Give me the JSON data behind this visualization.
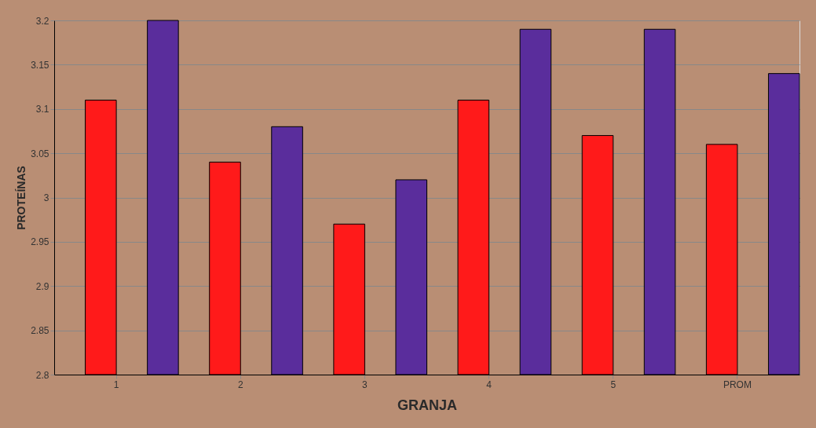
{
  "chart_data": {
    "type": "bar",
    "xlabel": "GRANJA",
    "ylabel": "PROTEÍNAS",
    "categories": [
      "1",
      "2",
      "3",
      "4",
      "5",
      "PROM"
    ],
    "series": [
      {
        "color": "#ff1a1a",
        "values": [
          3.11,
          3.04,
          2.97,
          3.11,
          3.07,
          3.06
        ]
      },
      {
        "color": "#5a2d9c",
        "values": [
          3.2,
          3.08,
          3.02,
          3.19,
          3.19,
          3.14
        ]
      }
    ],
    "ylim": [
      2.8,
      3.2
    ],
    "yticks": [
      2.8,
      2.85,
      2.9,
      2.95,
      3,
      3.05,
      3.1,
      3.15,
      3.2
    ],
    "grid": "y",
    "legend": false
  }
}
